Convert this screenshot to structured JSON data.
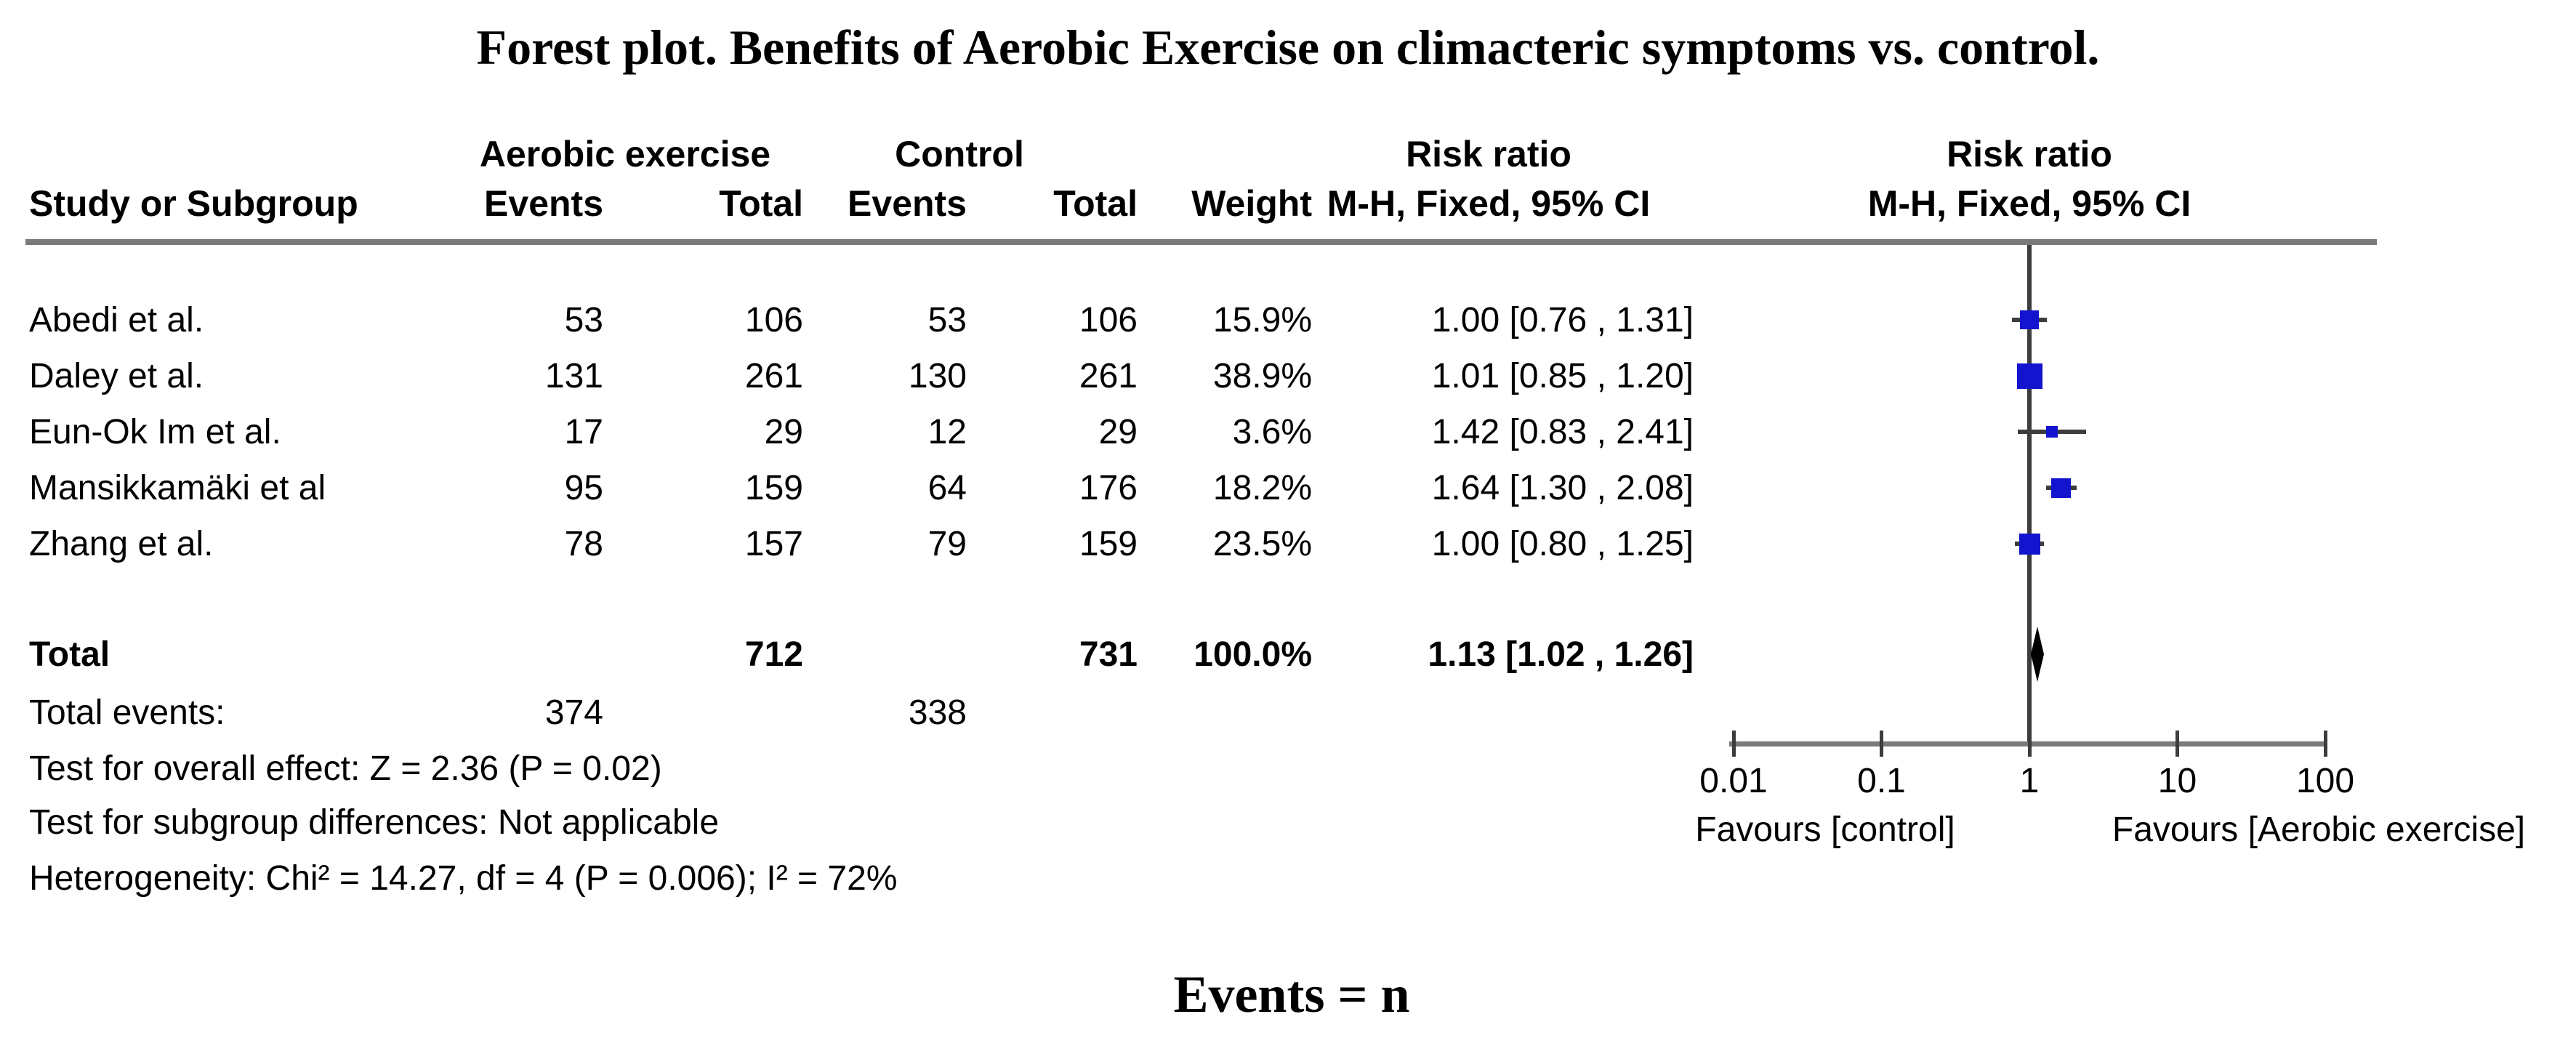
{
  "title": "Forest plot. Benefits of Aerobic Exercise on climacteric symptoms vs. control.",
  "footer_note": "Events = n",
  "table": {
    "group_headers": {
      "experimental": "Aerobic exercise",
      "control": "Control",
      "risk_ratio_text_col": "Risk ratio",
      "risk_ratio_plot_col": "Risk ratio"
    },
    "column_headers": {
      "study": "Study or Subgroup",
      "events": "Events",
      "total": "Total",
      "weight": "Weight",
      "mh_fixed_ci": "M-H, Fixed, 95% CI"
    },
    "studies": [
      {
        "name": "Abedi et al.",
        "exp_events": "53",
        "exp_total": "106",
        "ctl_events": "53",
        "ctl_total": "106",
        "weight": "15.9%",
        "rr_ci": "1.00 [0.76 , 1.31]"
      },
      {
        "name": "Daley et al.",
        "exp_events": "131",
        "exp_total": "261",
        "ctl_events": "130",
        "ctl_total": "261",
        "weight": "38.9%",
        "rr_ci": "1.01 [0.85 , 1.20]"
      },
      {
        "name": "Eun-Ok Im et al.",
        "exp_events": "17",
        "exp_total": "29",
        "ctl_events": "12",
        "ctl_total": "29",
        "weight": "3.6%",
        "rr_ci": "1.42 [0.83 , 2.41]"
      },
      {
        "name": "Mansikkamäki et al",
        "exp_events": "95",
        "exp_total": "159",
        "ctl_events": "64",
        "ctl_total": "176",
        "weight": "18.2%",
        "rr_ci": "1.64 [1.30 , 2.08]"
      },
      {
        "name": "Zhang et al.",
        "exp_events": "78",
        "exp_total": "157",
        "ctl_events": "79",
        "ctl_total": "159",
        "weight": "23.5%",
        "rr_ci": "1.00 [0.80 , 1.25]"
      }
    ],
    "total_row": {
      "label": "Total",
      "exp_total": "712",
      "ctl_total": "731",
      "weight": "100.0%",
      "rr_ci": "1.13 [1.02 , 1.26]"
    },
    "total_events_row": {
      "label": "Total events:",
      "exp_events": "374",
      "ctl_events": "338"
    },
    "stats": [
      "Test for overall effect: Z = 2.36 (P = 0.02)",
      "Test for subgroup differences: Not applicable",
      "Heterogeneity: Chi² = 14.27, df = 4 (P = 0.006); I² = 72%"
    ]
  },
  "axis": {
    "tick_labels": [
      "0.01",
      "0.1",
      "1",
      "10",
      "100"
    ],
    "tick_values": [
      0.01,
      0.1,
      1,
      10,
      100
    ],
    "favours_left": "Favours [control]",
    "favours_right": "Favours [Aerobic exercise]"
  },
  "colors": {
    "square_blue": "#1414CE",
    "diamond_black": "#000000",
    "line_dark": "#3d3d3d",
    "rule_gray": "#7a7a7a"
  },
  "chart_data": {
    "type": "scatter",
    "subtype": "forest_plot",
    "title": "Forest plot. Benefits of Aerobic Exercise on climacteric symptoms vs. control.",
    "effect_measure": "Risk ratio",
    "method": "M-H, Fixed, 95% CI",
    "x_scale": "log10",
    "x_ticks": [
      0.01,
      0.1,
      1,
      10,
      100
    ],
    "xlim": [
      0.01,
      100
    ],
    "x_label_left": "Favours [control]",
    "x_label_right": "Favours [Aerobic exercise]",
    "studies": [
      {
        "study": "Abedi et al.",
        "exp_events": 53,
        "exp_total": 106,
        "ctl_events": 53,
        "ctl_total": 106,
        "weight_pct": 15.9,
        "rr": 1.0,
        "ci_low": 0.76,
        "ci_high": 1.31
      },
      {
        "study": "Daley et al.",
        "exp_events": 131,
        "exp_total": 261,
        "ctl_events": 130,
        "ctl_total": 261,
        "weight_pct": 38.9,
        "rr": 1.01,
        "ci_low": 0.85,
        "ci_high": 1.2
      },
      {
        "study": "Eun-Ok Im et al.",
        "exp_events": 17,
        "exp_total": 29,
        "ctl_events": 12,
        "ctl_total": 29,
        "weight_pct": 3.6,
        "rr": 1.42,
        "ci_low": 0.83,
        "ci_high": 2.41
      },
      {
        "study": "Mansikkamäki et al",
        "exp_events": 95,
        "exp_total": 159,
        "ctl_events": 64,
        "ctl_total": 176,
        "weight_pct": 18.2,
        "rr": 1.64,
        "ci_low": 1.3,
        "ci_high": 2.08
      },
      {
        "study": "Zhang et al.",
        "exp_events": 78,
        "exp_total": 157,
        "ctl_events": 79,
        "ctl_total": 159,
        "weight_pct": 23.5,
        "rr": 1.0,
        "ci_low": 0.8,
        "ci_high": 1.25
      }
    ],
    "total": {
      "exp_events": 374,
      "exp_total": 712,
      "ctl_events": 338,
      "ctl_total": 731,
      "weight_pct": 100.0,
      "rr": 1.13,
      "ci_low": 1.02,
      "ci_high": 1.26
    },
    "overall_effect": "Z = 2.36 (P = 0.02)",
    "subgroup_differences": "Not applicable",
    "heterogeneity": "Chi² = 14.27, df = 4 (P = 0.006); I² = 72%"
  }
}
